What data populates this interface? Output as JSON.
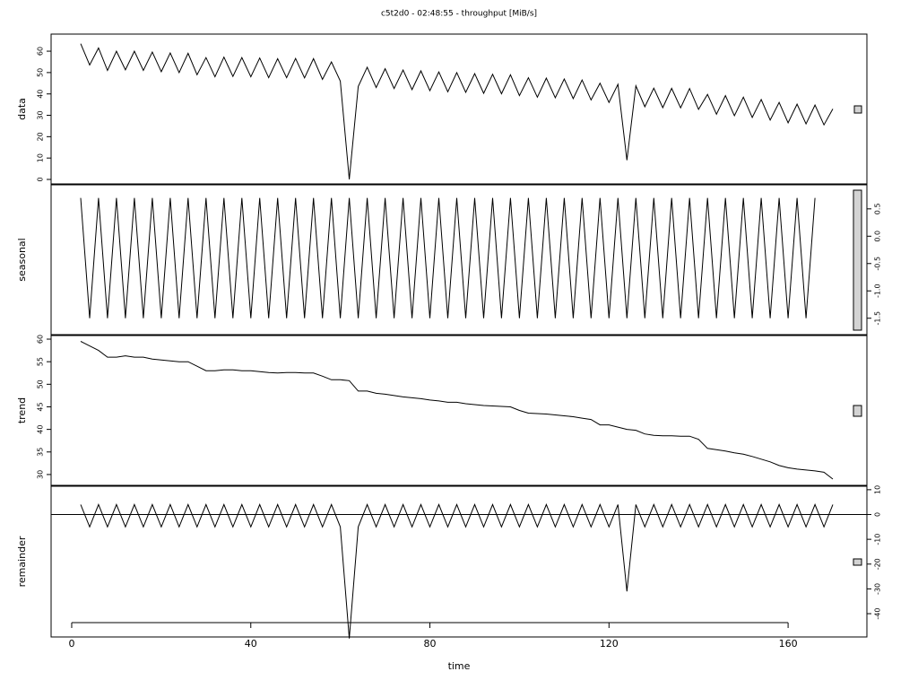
{
  "chart_data": {
    "type": "line",
    "title": "c5t2d0 - 02:48:55 - throughput [MiB/s]",
    "xlabel": "time",
    "xlim": [
      -4.6,
      177.6
    ],
    "xticks": [
      0,
      40,
      80,
      120,
      160
    ],
    "color": "#000000",
    "x": [
      2,
      4,
      6,
      8,
      10,
      12,
      14,
      16,
      18,
      20,
      22,
      24,
      26,
      28,
      30,
      32,
      34,
      36,
      38,
      40,
      42,
      44,
      46,
      48,
      50,
      52,
      54,
      56,
      58,
      60,
      62,
      64,
      66,
      68,
      70,
      72,
      74,
      76,
      78,
      80,
      82,
      84,
      86,
      88,
      90,
      92,
      94,
      96,
      98,
      100,
      102,
      104,
      106,
      108,
      110,
      112,
      114,
      116,
      118,
      120,
      122,
      124,
      126,
      128,
      130,
      132,
      134,
      136,
      138,
      140,
      142,
      144,
      146,
      148,
      150,
      152,
      154,
      156,
      158,
      160,
      162,
      164,
      166,
      168,
      170
    ],
    "panels": [
      {
        "ylabel": "data",
        "tick_side": "left",
        "ylim": [
          -2.1,
          68
        ],
        "yticks": [
          0,
          10,
          20,
          30,
          40,
          50,
          60
        ],
        "values": [
          63.5,
          53.5,
          61.5,
          51,
          60,
          51.3,
          60,
          51,
          59.6,
          50.4,
          59.2,
          50,
          59,
          49,
          57,
          48,
          57.2,
          48.2,
          57,
          48,
          56.8,
          47.6,
          56.5,
          47.6,
          56.6,
          47.5,
          56.5,
          46.8,
          55,
          46,
          0,
          43.5,
          52.5,
          43,
          51.8,
          42.5,
          51.2,
          42,
          50.8,
          41.5,
          50.3,
          41,
          50,
          40.7,
          49.5,
          40.3,
          49.2,
          40.1,
          49,
          39.2,
          47.6,
          38.5,
          47.4,
          38.2,
          47,
          37.8,
          46.5,
          37.2,
          45,
          36,
          44.5,
          9,
          43.8,
          34,
          42.7,
          33.6,
          42.6,
          33.5,
          42.5,
          32.8,
          39.8,
          30.5,
          39.2,
          29.8,
          38.5,
          29,
          37.4,
          27.8,
          36,
          26.5,
          35.2,
          26,
          34.8,
          25.5,
          33
        ]
      },
      {
        "ylabel": "seasonal",
        "tick_side": "right",
        "ylim": [
          -1.8,
          0.94
        ],
        "yticks": [
          0.5,
          {
            "value": 0,
            "label": "0.0"
          },
          -0.5,
          {
            "value": -1,
            "label": "-1.0"
          },
          -1.5
        ],
        "values": [
          0.7,
          -1.5,
          0.7,
          -1.5,
          0.7,
          -1.5,
          0.7,
          -1.5,
          0.7,
          -1.5,
          0.7,
          -1.5,
          0.7,
          -1.5,
          0.7,
          -1.5,
          0.7,
          -1.5,
          0.7,
          -1.5,
          0.7,
          -1.5,
          0.7,
          -1.5,
          0.7,
          -1.5,
          0.7,
          -1.5,
          0.7,
          -1.5,
          0.7,
          -1.5,
          0.7,
          -1.5,
          0.7,
          -1.5,
          0.7,
          -1.5,
          0.7,
          -1.5,
          0.7,
          -1.5,
          0.7,
          -1.5,
          0.7,
          -1.5,
          0.7,
          -1.5,
          0.7,
          -1.5,
          0.7,
          -1.5,
          0.7,
          -1.5,
          0.7,
          -1.5,
          0.7,
          -1.5,
          0.7,
          -1.5,
          0.7,
          -1.5,
          0.7,
          -1.5,
          0.7,
          -1.5,
          0.7,
          -1.5,
          0.7,
          -1.5,
          0.7,
          -1.5,
          0.7,
          -1.5,
          0.7,
          -1.5,
          0.7,
          -1.5,
          0.7,
          -1.5,
          0.7,
          -1.5,
          0.7
        ]
      },
      {
        "ylabel": "trend",
        "tick_side": "left",
        "ylim": [
          27.6,
          60.8
        ],
        "yticks": [
          30,
          35,
          40,
          45,
          50,
          55,
          60
        ],
        "values": [
          59.5,
          58.5,
          57.5,
          56,
          56,
          56.3,
          56,
          56,
          55.6,
          55.4,
          55.2,
          55,
          55,
          54,
          53,
          53,
          53.2,
          53.2,
          53,
          53,
          52.8,
          52.6,
          52.5,
          52.6,
          52.6,
          52.5,
          52.5,
          51.8,
          51,
          51,
          50.8,
          48.5,
          48.5,
          48,
          47.8,
          47.5,
          47.2,
          47,
          46.8,
          46.5,
          46.3,
          46,
          46,
          45.7,
          45.5,
          45.3,
          45.2,
          45.1,
          45,
          44.2,
          43.6,
          43.5,
          43.4,
          43.2,
          43,
          42.8,
          42.5,
          42.2,
          41,
          41,
          40.5,
          40,
          39.8,
          39,
          38.7,
          38.6,
          38.6,
          38.5,
          38.5,
          37.8,
          35.8,
          35.5,
          35.2,
          34.8,
          34.5,
          34,
          33.4,
          32.8,
          32,
          31.5,
          31.2,
          31,
          30.8,
          30.5,
          29
        ]
      },
      {
        "ylabel": "remainder",
        "tick_side": "right",
        "ylim": [
          -49.4,
          11.4
        ],
        "yticks": [
          10,
          0,
          -10,
          -20,
          -30,
          -40
        ],
        "values": [
          4,
          -5,
          4,
          -5,
          4,
          -5,
          4,
          -5,
          4,
          -5,
          4,
          -5,
          4,
          -5,
          4,
          -5,
          4,
          -5,
          4,
          -5,
          4,
          -5,
          4,
          -5,
          4,
          -5,
          4,
          -5,
          4,
          -5,
          -50,
          -5,
          4,
          -5,
          4,
          -5,
          4,
          -5,
          4,
          -5,
          4,
          -5,
          4,
          -5,
          4,
          -5,
          4,
          -5,
          4,
          -5,
          4,
          -5,
          4,
          -5,
          4,
          -5,
          4,
          -5,
          4,
          -5,
          4,
          -31,
          4,
          -5,
          4,
          -5,
          4,
          -5,
          4,
          -5,
          4,
          -5,
          4,
          -5,
          4,
          -5,
          4,
          -5,
          4,
          -5,
          4,
          -5,
          4,
          -5,
          4
        ]
      }
    ]
  }
}
